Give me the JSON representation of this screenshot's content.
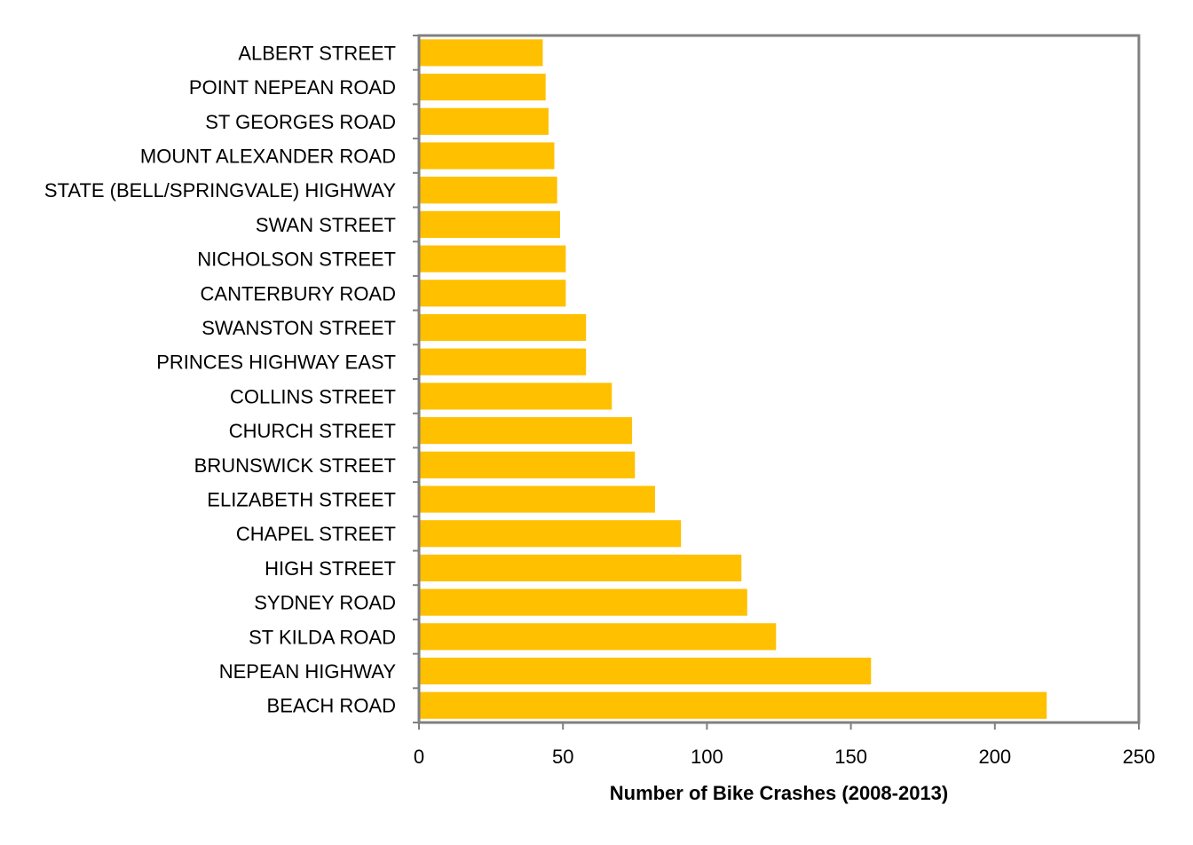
{
  "chart_data": {
    "type": "bar",
    "orientation": "horizontal",
    "title": "",
    "xlabel": "Number of Bike Crashes (2008-2013)",
    "ylabel": "",
    "xlim": [
      0,
      250
    ],
    "xticks": [
      0,
      50,
      100,
      150,
      200,
      250
    ],
    "grid": false,
    "legend": "none",
    "bar_color": "#FFC000",
    "axis_color": "#808080",
    "categories": [
      "ALBERT STREET",
      "POINT NEPEAN ROAD",
      "ST GEORGES ROAD",
      "MOUNT ALEXANDER ROAD",
      "STATE (BELL/SPRINGVALE) HIGHWAY",
      "SWAN STREET",
      "NICHOLSON STREET",
      "CANTERBURY ROAD",
      "SWANSTON STREET",
      "PRINCES HIGHWAY EAST",
      "COLLINS STREET",
      "CHURCH STREET",
      "BRUNSWICK STREET",
      "ELIZABETH STREET",
      "CHAPEL STREET",
      "HIGH STREET",
      "SYDNEY ROAD",
      "ST KILDA ROAD",
      "NEPEAN HIGHWAY",
      "BEACH ROAD"
    ],
    "values": [
      43,
      44,
      45,
      47,
      48,
      49,
      51,
      51,
      58,
      58,
      67,
      74,
      75,
      82,
      91,
      112,
      114,
      124,
      157,
      218
    ]
  }
}
